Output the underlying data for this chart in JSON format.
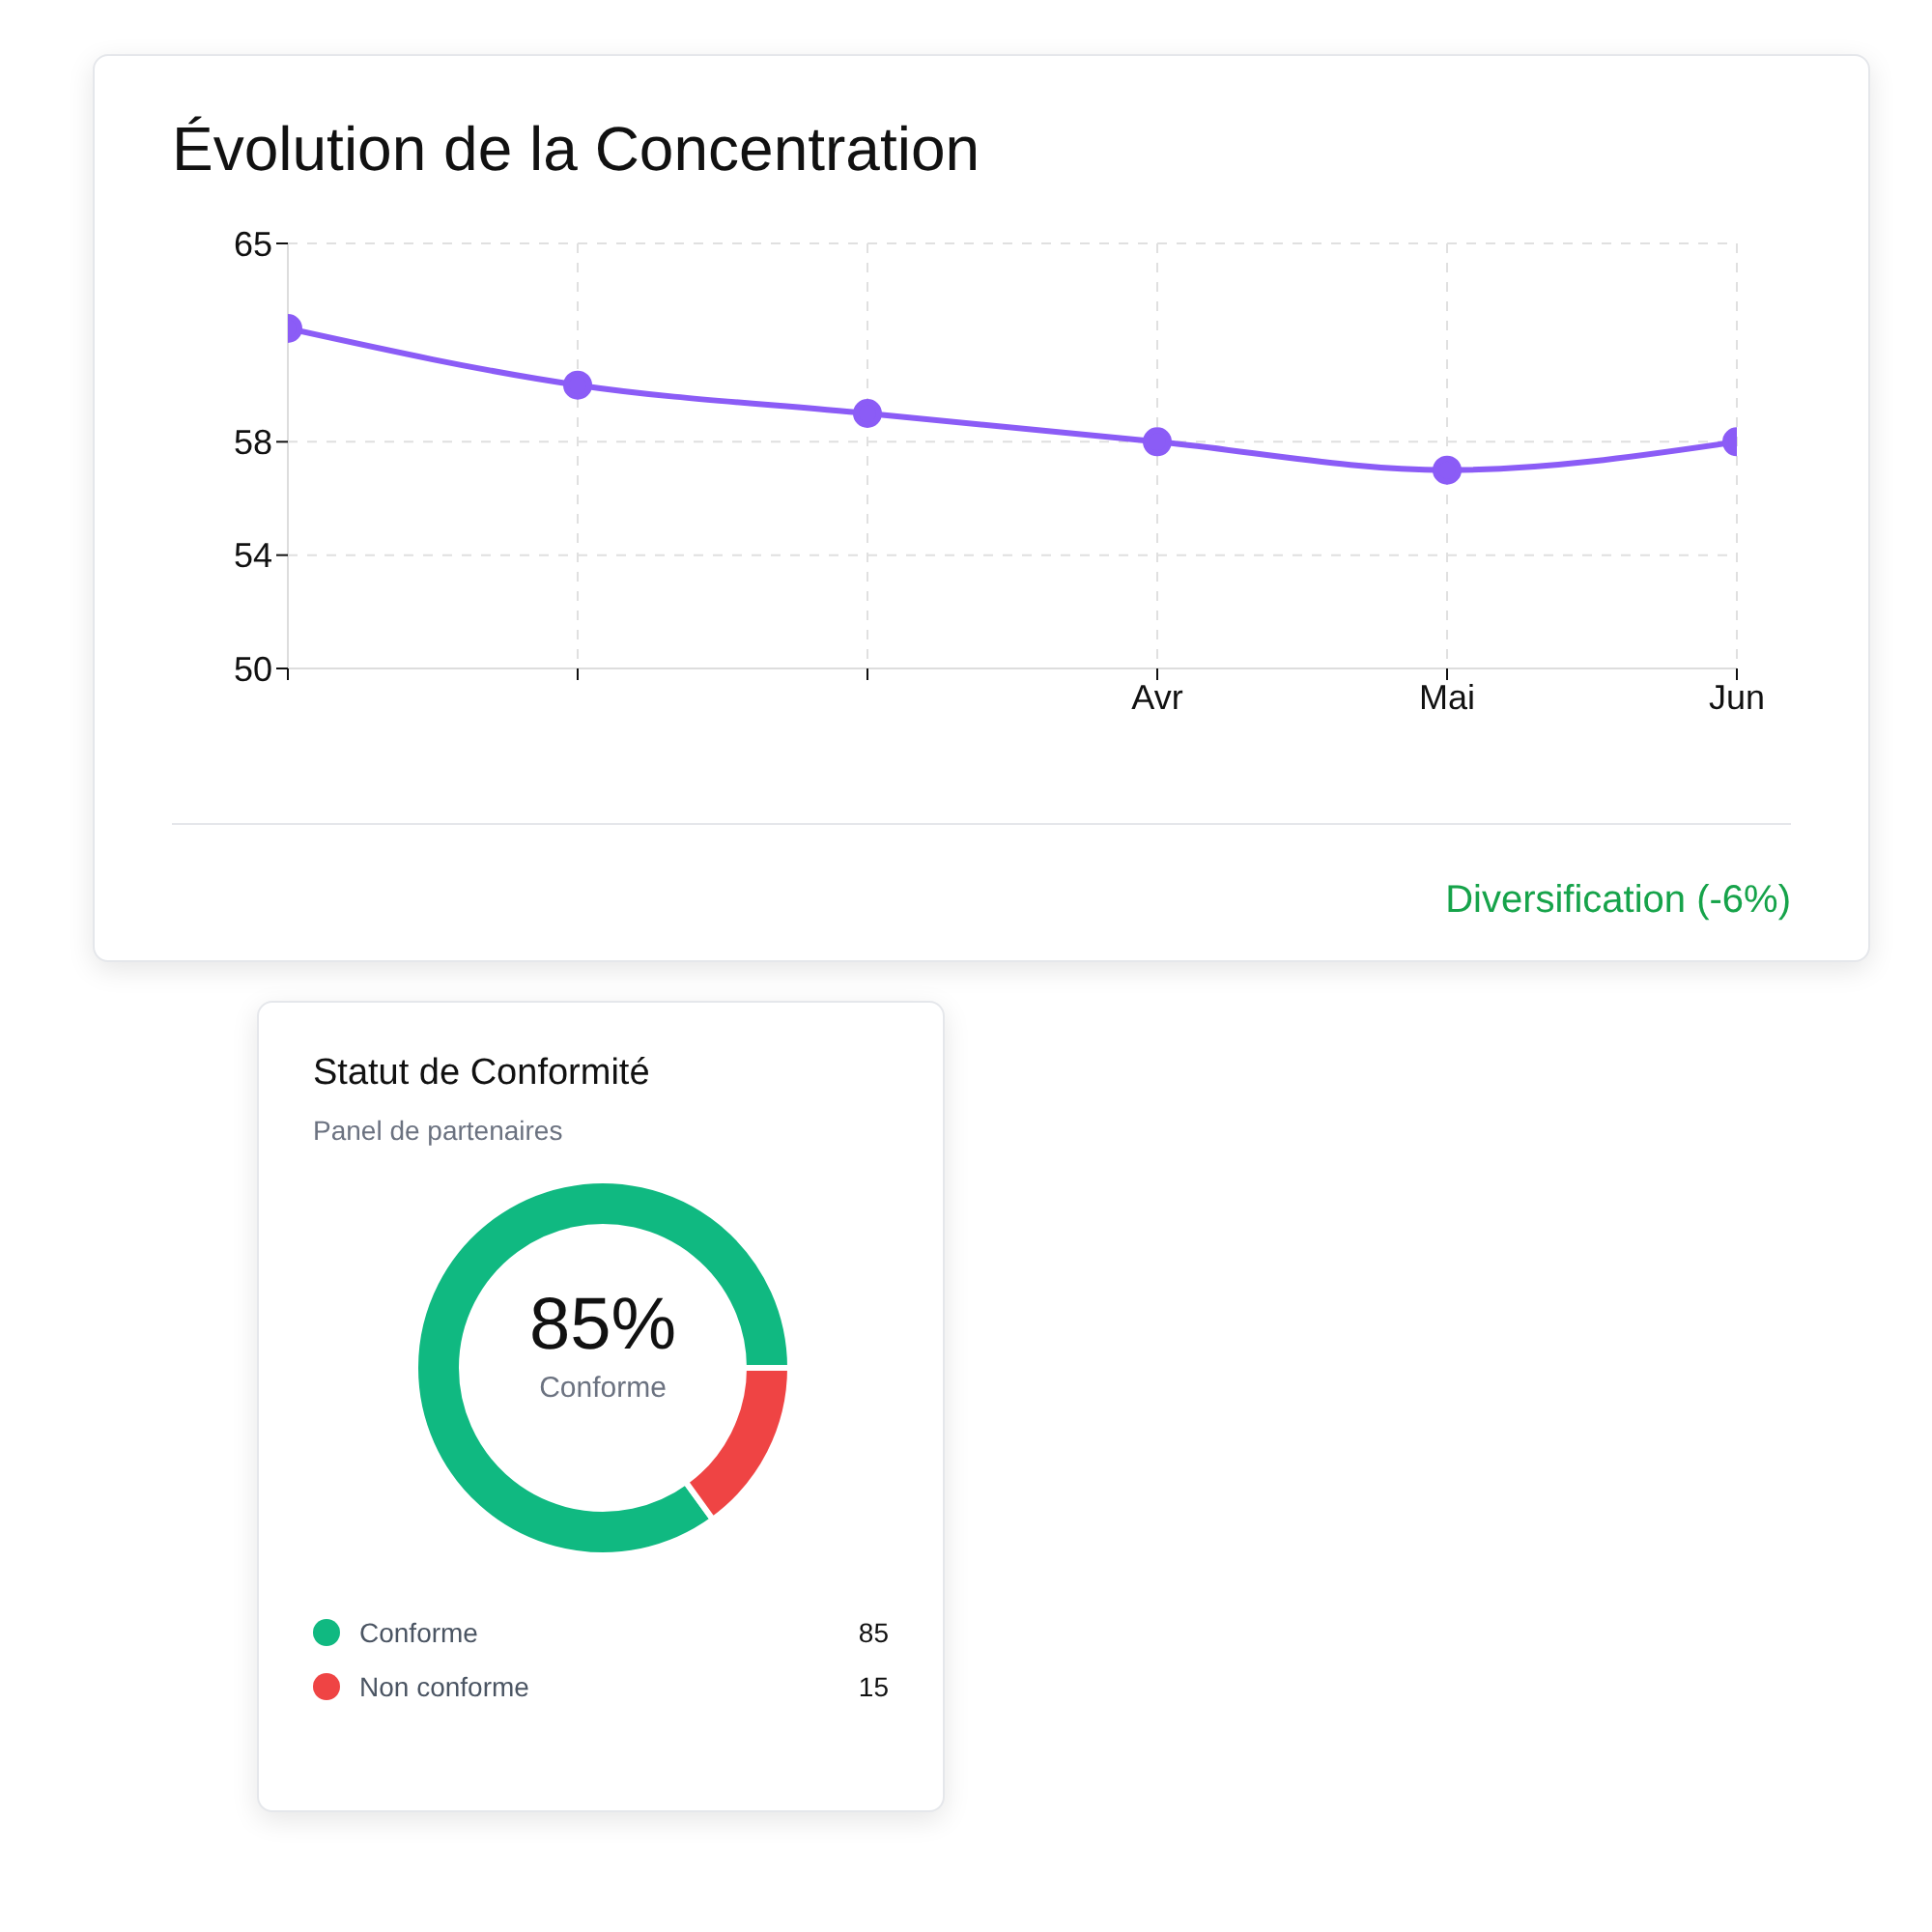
{
  "chart_data": [
    {
      "type": "line",
      "title": "Évolution de la Concentration",
      "categories": [
        null,
        null,
        null,
        "Avr",
        "Mai",
        "Jun"
      ],
      "values": [
        62,
        60,
        59,
        58,
        57,
        58
      ],
      "color": "#8b5cf6",
      "ylim": [
        50,
        65
      ],
      "yticks": [
        50,
        54,
        58,
        65
      ],
      "grid": true,
      "marker": "circle",
      "line_style": "solid",
      "annotations": [
        "Diversification (-6%)"
      ]
    },
    {
      "type": "donut",
      "title": "Statut de Conformité",
      "subtitle": "Panel de partenaires",
      "categories": [
        "Conforme",
        "Non conforme"
      ],
      "values": [
        85,
        15
      ],
      "colors": [
        "#10b981",
        "#ef4444"
      ],
      "data_labels": true,
      "legend": "bottom",
      "annotations": [
        "85%",
        "Conforme"
      ]
    }
  ]
}
